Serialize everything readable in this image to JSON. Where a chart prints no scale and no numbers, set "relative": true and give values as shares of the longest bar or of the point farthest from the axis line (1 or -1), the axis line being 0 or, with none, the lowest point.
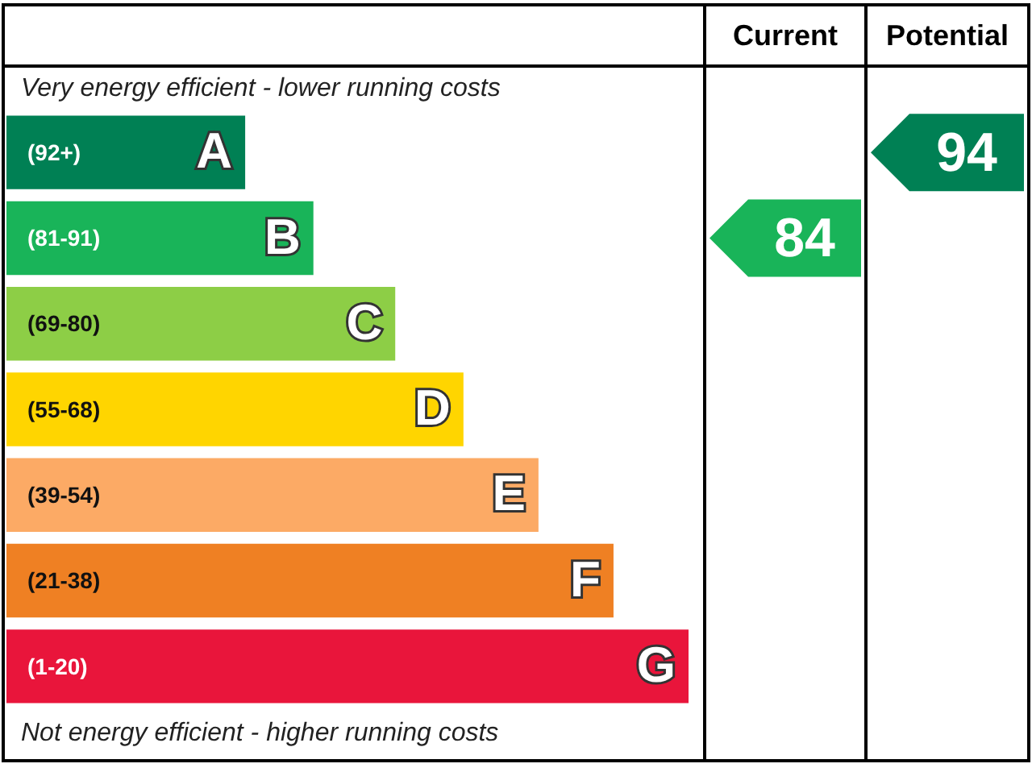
{
  "chart_data": [
    {
      "type": "bar",
      "orientation": "horizontal",
      "relative": true,
      "legend": false,
      "categories": [
        "A",
        "B",
        "C",
        "D",
        "E",
        "F",
        "G"
      ],
      "values": [
        0.35,
        0.45,
        0.57,
        0.67,
        0.78,
        0.89,
        1
      ],
      "colors": [
        "#008054",
        "#19b459",
        "#8dce46",
        "#ffd500",
        "#fcaa65",
        "#ef8023",
        "#e9153b"
      ],
      "annotations": [
        "Very energy efficient - lower running costs",
        "(92+)",
        "(81-91)",
        "(69-80)",
        "(55-68)",
        "(39-54)",
        "(21-38)",
        "(1-20)",
        "Not energy efficient - higher running costs"
      ]
    },
    {
      "type": "other",
      "title": "Current",
      "data_labels": true,
      "categories": [
        null,
        null,
        null,
        null,
        null,
        null,
        null
      ],
      "values": [
        null,
        84,
        null,
        null,
        null,
        null,
        null
      ],
      "colors": [
        null,
        "#19b459",
        null,
        null,
        null,
        null,
        null
      ]
    },
    {
      "type": "other",
      "title": "Potential",
      "data_labels": true,
      "categories": [
        null,
        null,
        null,
        null,
        null,
        null,
        null
      ],
      "values": [
        94,
        null,
        null,
        null,
        null,
        null,
        null
      ],
      "colors": [
        "#008054",
        null,
        null,
        null,
        null,
        null,
        null
      ]
    }
  ]
}
